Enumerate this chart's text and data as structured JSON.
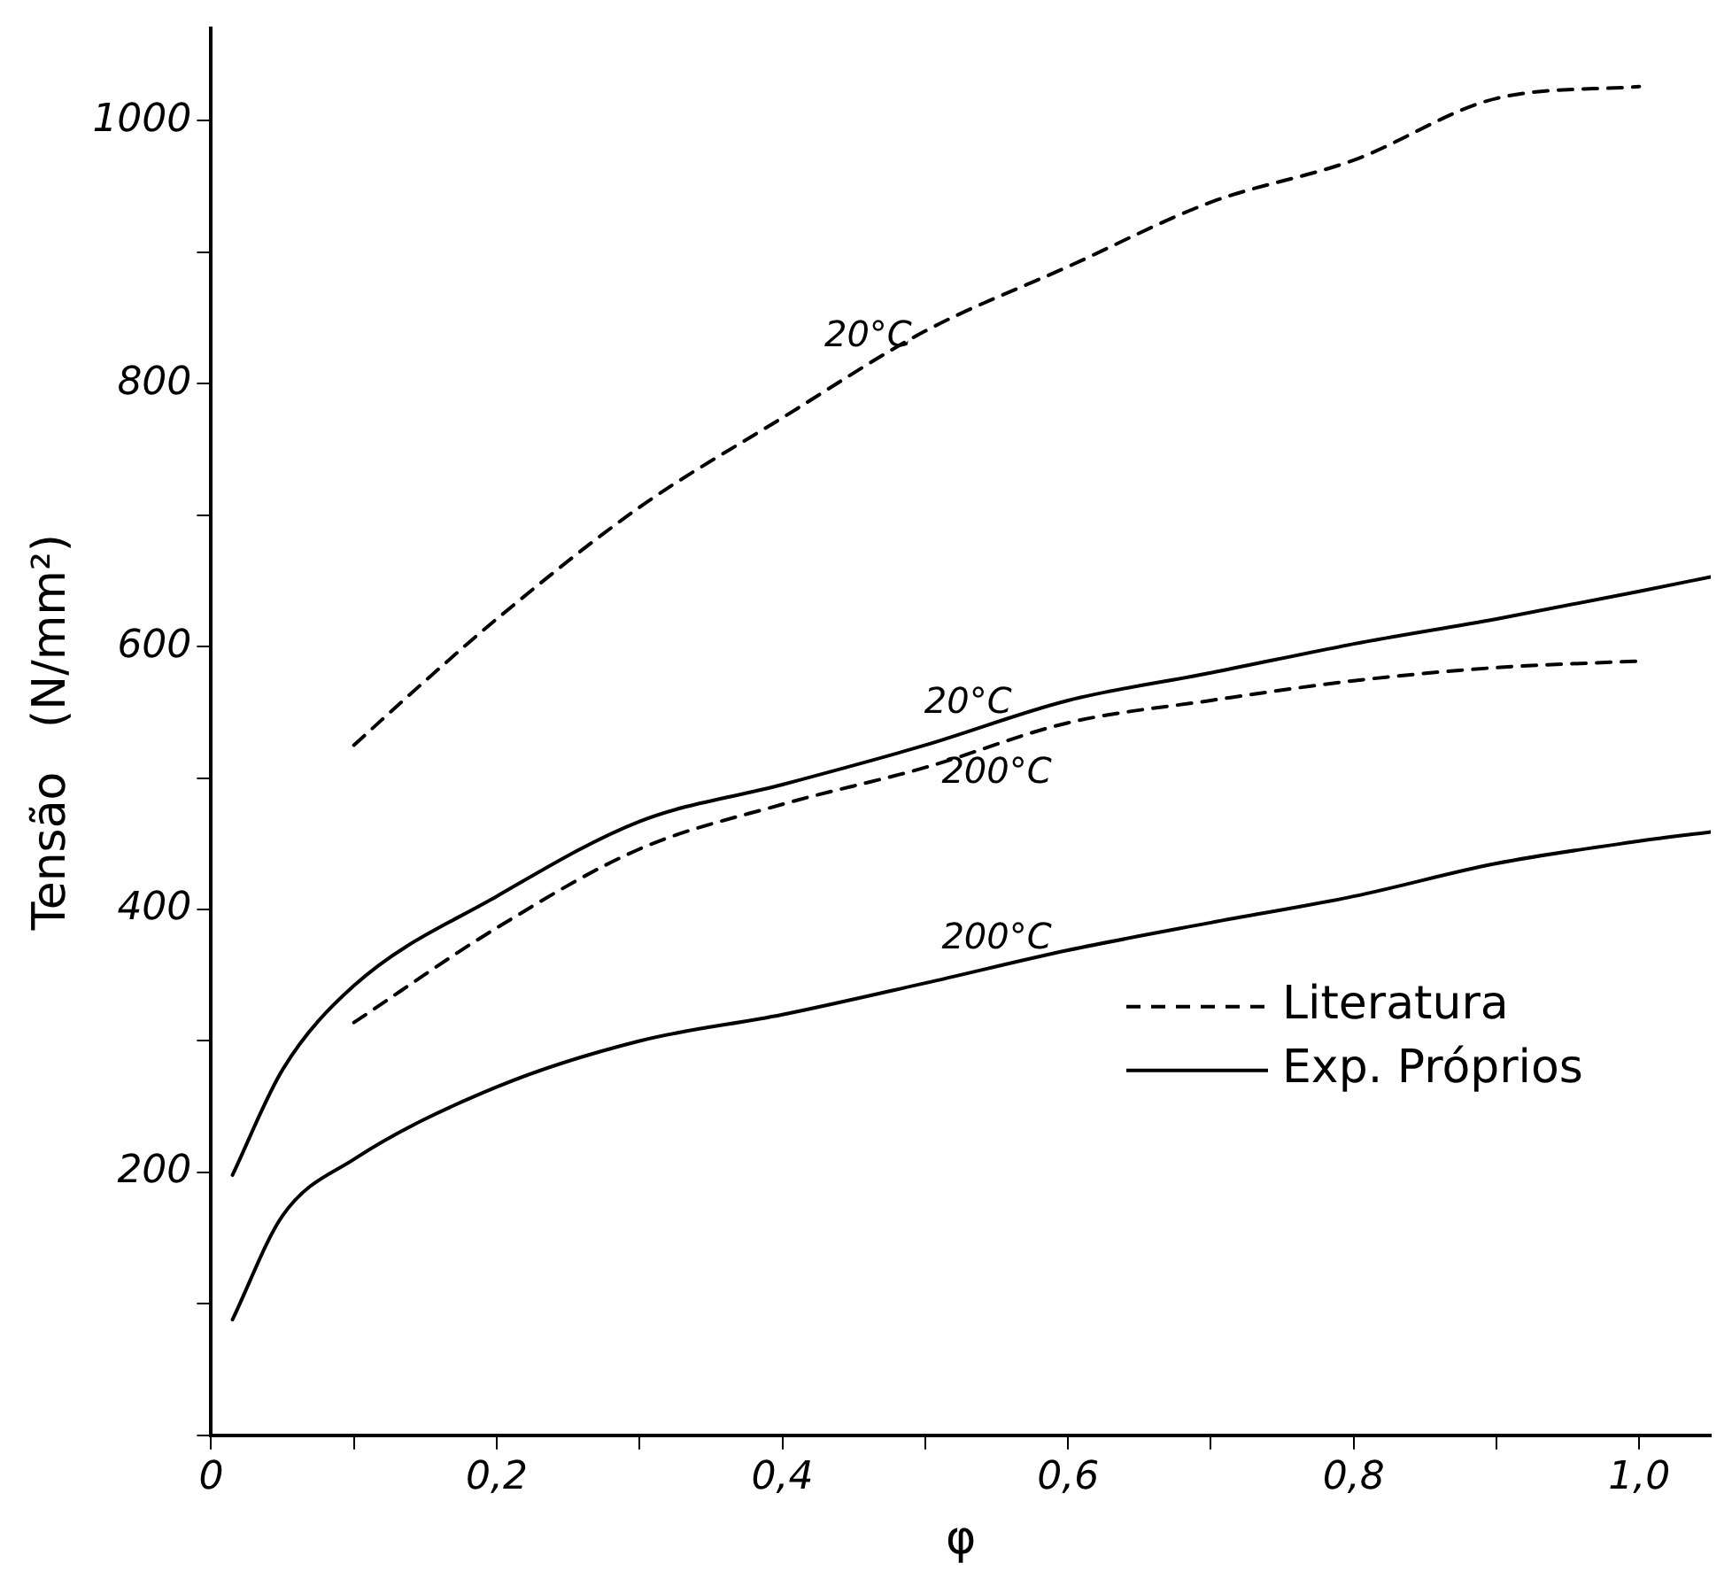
{
  "chart_data": {
    "type": "line",
    "xlabel": "φ",
    "ylabel": "Tensão   (N/mm²)",
    "xlim": [
      0,
      1.05
    ],
    "ylim": [
      0,
      1070
    ],
    "xticks": [
      0,
      {
        "value": 0.1,
        "label": null
      },
      {
        "value": 0.2,
        "label": "0,2"
      },
      {
        "value": 0.3,
        "label": null
      },
      {
        "value": 0.4,
        "label": "0,4"
      },
      {
        "value": 0.5,
        "label": null
      },
      {
        "value": 0.6,
        "label": "0,6"
      },
      {
        "value": 0.7,
        "label": null
      },
      {
        "value": 0.8,
        "label": "0,8"
      },
      {
        "value": 0.9,
        "label": null
      },
      {
        "value": 1.0,
        "label": "1,0"
      }
    ],
    "yticks": [
      {
        "value": 0,
        "label": null
      },
      {
        "value": 100,
        "label": null
      },
      200,
      {
        "value": 300,
        "label": null
      },
      400,
      {
        "value": 500,
        "label": null
      },
      600,
      {
        "value": 700,
        "label": null
      },
      800,
      {
        "value": 900,
        "label": null
      },
      1000
    ],
    "grid": false,
    "legend": "bottom right",
    "marker": "none",
    "series": [
      {
        "name": "Literatura",
        "color": "#000000",
        "line_style": "dashed",
        "x": [
          0.1,
          0.15,
          0.2,
          0.3,
          0.4,
          0.5,
          0.6,
          0.7,
          0.8,
          0.9,
          1.0
        ],
        "values": [
          525,
          574,
          621,
          706,
          774,
          840,
          889,
          938,
          970,
          1017,
          1026
        ]
      },
      {
        "name": "Exp. Próprios",
        "color": "#000000",
        "line_style": "solid",
        "x": [
          0.015,
          0.05,
          0.1,
          0.2,
          0.3,
          0.4,
          0.5,
          0.6,
          0.7,
          0.8,
          0.9,
          1.0,
          1.05
        ],
        "values": [
          198,
          278,
          342,
          410,
          467,
          495,
          525,
          559,
          580,
          602,
          621,
          642,
          653
        ]
      },
      {
        "color": "#000000",
        "line_style": "dashed",
        "x": [
          0.1,
          0.2,
          0.3,
          0.4,
          0.5,
          0.6,
          0.7,
          0.8,
          0.9,
          1.0
        ],
        "values": [
          314,
          386,
          446,
          480,
          508,
          542,
          559,
          574,
          584,
          589
        ]
      },
      {
        "color": "#000000",
        "line_style": "solid",
        "x": [
          0.015,
          0.05,
          0.1,
          0.2,
          0.3,
          0.4,
          0.5,
          0.6,
          0.7,
          0.8,
          0.9,
          1.0,
          1.05
        ],
        "values": [
          88,
          167,
          210,
          265,
          300,
          320,
          344,
          369,
          390,
          410,
          435,
          452,
          459
        ]
      }
    ],
    "annotations": [
      {
        "text": "20°C",
        "x": 0.46,
        "y": 814
      },
      {
        "text": "20°C",
        "x": 0.53,
        "y": 535
      },
      {
        "text": "200°C",
        "x": 0.55,
        "y": 525
      },
      {
        "text": "200°C",
        "x": 0.55,
        "y": 356
      }
    ]
  }
}
